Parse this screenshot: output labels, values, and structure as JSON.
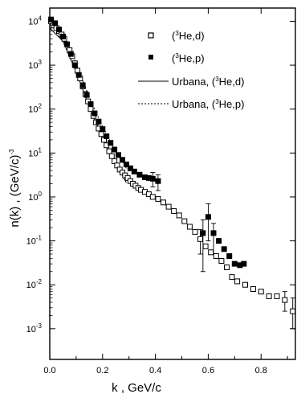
{
  "chart_data": {
    "type": "scatter",
    "title": "",
    "xlabel": "k ,  GeV/c",
    "ylabel": "n(k) ,  (GeV/c)",
    "ylabel_exp": "-3",
    "x_range": [
      0.0,
      0.93
    ],
    "y_range": [
      0.0002,
      20000
    ],
    "y_scale": "log",
    "x_ticks": [
      0.0,
      0.2,
      0.4,
      0.6,
      0.8
    ],
    "x_tick_labels": [
      "0.0",
      "0.2",
      "0.4",
      "0.6",
      "0.8"
    ],
    "y_ticks": [
      0.001,
      0.01,
      0.1,
      1,
      10,
      100,
      1000,
      10000
    ],
    "y_tick_labels": [
      {
        "base": "10",
        "exp": "-3"
      },
      {
        "base": "10",
        "exp": "-2"
      },
      {
        "base": "10",
        "exp": "-1"
      },
      {
        "base": "10",
        "exp": "0"
      },
      {
        "base": "10",
        "exp": "1"
      },
      {
        "base": "10",
        "exp": "2"
      },
      {
        "base": "10",
        "exp": "3"
      },
      {
        "base": "10",
        "exp": "4"
      }
    ],
    "grid": false,
    "legend_position": "top-right",
    "series": [
      {
        "name_pre": "(",
        "name_sup": "3",
        "name_post": "He,d)",
        "marker": "open-square",
        "points": [
          {
            "x": 0.005,
            "y": 10000
          },
          {
            "x": 0.015,
            "y": 8000
          },
          {
            "x": 0.025,
            "y": 7000
          },
          {
            "x": 0.035,
            "y": 6000
          },
          {
            "x": 0.045,
            "y": 5000
          },
          {
            "x": 0.055,
            "y": 4000
          },
          {
            "x": 0.065,
            "y": 3000
          },
          {
            "x": 0.075,
            "y": 2200
          },
          {
            "x": 0.085,
            "y": 1600
          },
          {
            "x": 0.095,
            "y": 1100
          },
          {
            "x": 0.105,
            "y": 750
          },
          {
            "x": 0.115,
            "y": 500
          },
          {
            "x": 0.125,
            "y": 330
          },
          {
            "x": 0.135,
            "y": 220
          },
          {
            "x": 0.145,
            "y": 150
          },
          {
            "x": 0.155,
            "y": 100
          },
          {
            "x": 0.165,
            "y": 70
          },
          {
            "x": 0.175,
            "y": 50
          },
          {
            "x": 0.185,
            "y": 36
          },
          {
            "x": 0.195,
            "y": 27
          },
          {
            "x": 0.205,
            "y": 20
          },
          {
            "x": 0.215,
            "y": 15
          },
          {
            "x": 0.225,
            "y": 11
          },
          {
            "x": 0.235,
            "y": 8.5
          },
          {
            "x": 0.245,
            "y": 6.5
          },
          {
            "x": 0.255,
            "y": 5.2
          },
          {
            "x": 0.265,
            "y": 4.2
          },
          {
            "x": 0.275,
            "y": 3.6
          },
          {
            "x": 0.285,
            "y": 3.1
          },
          {
            "x": 0.295,
            "y": 2.7
          },
          {
            "x": 0.305,
            "y": 2.3
          },
          {
            "x": 0.315,
            "y": 2.0
          },
          {
            "x": 0.325,
            "y": 1.8
          },
          {
            "x": 0.335,
            "y": 1.6
          },
          {
            "x": 0.345,
            "y": 1.45
          },
          {
            "x": 0.36,
            "y": 1.3
          },
          {
            "x": 0.375,
            "y": 1.15
          },
          {
            "x": 0.39,
            "y": 1.0
          },
          {
            "x": 0.41,
            "y": 0.9
          },
          {
            "x": 0.43,
            "y": 0.75
          },
          {
            "x": 0.45,
            "y": 0.6
          },
          {
            "x": 0.47,
            "y": 0.48
          },
          {
            "x": 0.49,
            "y": 0.38
          },
          {
            "x": 0.51,
            "y": 0.28
          },
          {
            "x": 0.53,
            "y": 0.21
          },
          {
            "x": 0.55,
            "y": 0.16
          },
          {
            "x": 0.57,
            "y": 0.11
          },
          {
            "x": 0.59,
            "y": 0.075
          },
          {
            "x": 0.61,
            "y": 0.055
          },
          {
            "x": 0.63,
            "y": 0.045
          },
          {
            "x": 0.65,
            "y": 0.035
          },
          {
            "x": 0.67,
            "y": 0.025
          },
          {
            "x": 0.69,
            "y": 0.015
          },
          {
            "x": 0.71,
            "y": 0.012
          },
          {
            "x": 0.74,
            "y": 0.01
          },
          {
            "x": 0.77,
            "y": 0.008
          },
          {
            "x": 0.8,
            "y": 0.007
          },
          {
            "x": 0.83,
            "y": 0.0055
          },
          {
            "x": 0.86,
            "y": 0.0055
          },
          {
            "x": 0.89,
            "y": 0.0045
          },
          {
            "x": 0.92,
            "y": 0.0025
          }
        ]
      },
      {
        "name_pre": "(",
        "name_sup": "3",
        "name_post": "He,p)",
        "marker": "filled-square",
        "points": [
          {
            "x": 0.005,
            "y": 11000
          },
          {
            "x": 0.02,
            "y": 9000
          },
          {
            "x": 0.035,
            "y": 6500
          },
          {
            "x": 0.05,
            "y": 4500
          },
          {
            "x": 0.065,
            "y": 3000
          },
          {
            "x": 0.08,
            "y": 1800
          },
          {
            "x": 0.095,
            "y": 1000
          },
          {
            "x": 0.11,
            "y": 600
          },
          {
            "x": 0.125,
            "y": 350
          },
          {
            "x": 0.14,
            "y": 210
          },
          {
            "x": 0.155,
            "y": 130
          },
          {
            "x": 0.17,
            "y": 80
          },
          {
            "x": 0.185,
            "y": 52
          },
          {
            "x": 0.2,
            "y": 35
          },
          {
            "x": 0.215,
            "y": 24
          },
          {
            "x": 0.23,
            "y": 17
          },
          {
            "x": 0.245,
            "y": 12
          },
          {
            "x": 0.26,
            "y": 9
          },
          {
            "x": 0.275,
            "y": 7
          },
          {
            "x": 0.29,
            "y": 5.5
          },
          {
            "x": 0.305,
            "y": 4.5
          },
          {
            "x": 0.32,
            "y": 3.8
          },
          {
            "x": 0.34,
            "y": 3.2
          },
          {
            "x": 0.36,
            "y": 2.8
          },
          {
            "x": 0.375,
            "y": 2.7
          },
          {
            "x": 0.39,
            "y": 2.6
          },
          {
            "x": 0.41,
            "y": 2.3
          },
          {
            "x": 0.58,
            "y": 0.15
          },
          {
            "x": 0.6,
            "y": 0.35
          },
          {
            "x": 0.62,
            "y": 0.15
          },
          {
            "x": 0.64,
            "y": 0.1
          },
          {
            "x": 0.66,
            "y": 0.065
          },
          {
            "x": 0.68,
            "y": 0.045
          },
          {
            "x": 0.7,
            "y": 0.03
          },
          {
            "x": 0.72,
            "y": 0.028
          },
          {
            "x": 0.735,
            "y": 0.03
          }
        ]
      },
      {
        "name_pre": "Urbana, (",
        "name_sup": "3",
        "name_post": "He,d)",
        "line": "solid",
        "points": [
          {
            "x": 0.0,
            "y": 7000
          },
          {
            "x": 0.05,
            "y": 3500
          },
          {
            "x": 0.1,
            "y": 700
          },
          {
            "x": 0.15,
            "y": 110
          },
          {
            "x": 0.2,
            "y": 22
          },
          {
            "x": 0.25,
            "y": 5.5
          },
          {
            "x": 0.27,
            "y": 3.5
          },
          {
            "x": 0.29,
            "y": 2.1
          }
        ]
      },
      {
        "name_pre": "Urbana, (",
        "name_sup": "3",
        "name_post": "He,p)",
        "line": "dashed",
        "points": [
          {
            "x": 0.0,
            "y": 9000
          },
          {
            "x": 0.05,
            "y": 4500
          },
          {
            "x": 0.1,
            "y": 1100
          },
          {
            "x": 0.15,
            "y": 180
          },
          {
            "x": 0.2,
            "y": 40
          },
          {
            "x": 0.25,
            "y": 11
          },
          {
            "x": 0.29,
            "y": 4.5
          }
        ]
      }
    ]
  }
}
